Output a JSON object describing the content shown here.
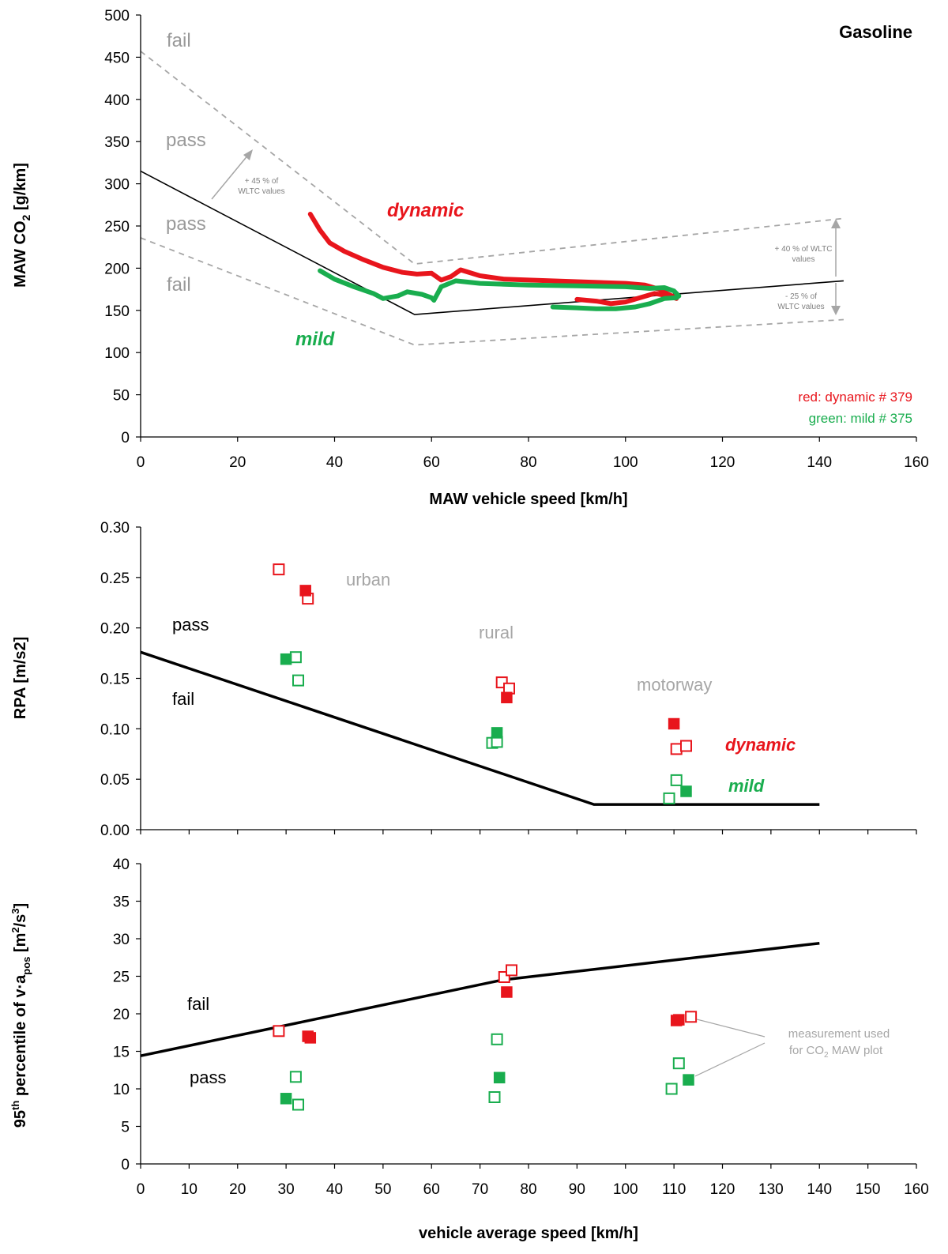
{
  "chart_data": [
    {
      "type": "scatter",
      "title": "Gasoline",
      "xlabel": "MAW vehicle speed [km/h]",
      "ylabel_main": "MAW CO",
      "ylabel_sub": "2",
      "ylabel_unit": " [g/km]",
      "xlim": [
        0,
        160
      ],
      "ylim": [
        0,
        500
      ],
      "xticks": [
        "0",
        "20",
        "40",
        "60",
        "80",
        "100",
        "120",
        "140",
        "160"
      ],
      "yticks": [
        "0",
        "50",
        "100",
        "150",
        "200",
        "250",
        "300",
        "350",
        "400",
        "450",
        "500"
      ],
      "grid": false,
      "legend_notes": [
        "red: dynamic # 379",
        "green: mild # 375"
      ],
      "region_labels": [
        "fail",
        "pass",
        "pass",
        "fail"
      ],
      "series_labels": [
        "dynamic",
        "mild"
      ],
      "annotations": {
        "upper": [
          "+ 45 % of",
          "WLTC values"
        ],
        "right_upper": [
          "+ 40 % of WLTC",
          "values"
        ],
        "right_lower": [
          "- 25 % of",
          "WLTC values"
        ]
      },
      "reference_line": {
        "x": [
          0,
          56.5,
          145
        ],
        "y": [
          315,
          145,
          185
        ]
      },
      "upper_limit": {
        "x": [
          0,
          56.5,
          145
        ],
        "y": [
          457,
          205,
          259
        ]
      },
      "lower_limit": {
        "x": [
          0,
          56.5,
          145
        ],
        "y": [
          236,
          109,
          139
        ]
      },
      "series": [
        {
          "name": "dynamic",
          "color": "#e8151c",
          "x": [
            35,
            37,
            39,
            42,
            46,
            50,
            54,
            57,
            60,
            62,
            64,
            66,
            70,
            75,
            80,
            90,
            100,
            104,
            107,
            108.5,
            110,
            110.5,
            109,
            106,
            103,
            100,
            97,
            94,
            90
          ],
          "y": [
            264,
            245,
            230,
            220,
            210,
            201,
            195,
            193,
            194,
            186,
            190,
            198,
            191,
            187,
            186,
            184,
            182,
            180,
            175,
            170,
            166,
            164,
            167,
            170,
            165,
            160,
            158,
            161,
            163
          ]
        },
        {
          "name": "mild",
          "color": "#19ad4e",
          "x": [
            37,
            40,
            44,
            48,
            50,
            53,
            55,
            58,
            60,
            60.5,
            62,
            65,
            70,
            75,
            80,
            90,
            100,
            105,
            108,
            110,
            111,
            110.5,
            108,
            105,
            102,
            98,
            94,
            90,
            85
          ],
          "y": [
            197,
            187,
            178,
            170,
            164,
            167,
            172,
            169,
            165,
            162,
            178,
            185,
            182,
            181,
            180,
            179,
            178,
            176,
            177,
            173,
            167,
            165,
            164,
            158,
            154,
            152,
            152,
            153,
            154
          ]
        }
      ]
    },
    {
      "type": "scatter",
      "xlabel": "",
      "ylabel": "RPA [m/s2]",
      "xlim": [
        0,
        160
      ],
      "ylim": [
        0,
        0.3
      ],
      "yticks": [
        "0.00",
        "0.05",
        "0.10",
        "0.15",
        "0.20",
        "0.25",
        "0.30"
      ],
      "grid": false,
      "region_labels": [
        "pass",
        "fail"
      ],
      "phase_labels": [
        "urban",
        "rural",
        "motorway"
      ],
      "series_labels": [
        "dynamic",
        "mild"
      ],
      "limit_line": {
        "x": [
          0,
          93.5,
          140
        ],
        "y": [
          0.176,
          0.025,
          0.025
        ]
      },
      "series": [
        {
          "name": "dynamic",
          "color": "#e8151c",
          "filled": false,
          "x": [
            28.5,
            34.5,
            74.5,
            76,
            110.5,
            112.5
          ],
          "y": [
            0.258,
            0.229,
            0.146,
            0.14,
            0.08,
            0.083
          ]
        },
        {
          "name": "dynamic",
          "color": "#e8151c",
          "filled": true,
          "x": [
            34,
            75.5,
            110
          ],
          "y": [
            0.237,
            0.131,
            0.105
          ]
        },
        {
          "name": "mild",
          "color": "#19ad4e",
          "filled": false,
          "x": [
            32,
            32.5,
            72.5,
            73.5,
            109,
            110.5
          ],
          "y": [
            0.171,
            0.148,
            0.086,
            0.087,
            0.031,
            0.049
          ]
        },
        {
          "name": "mild",
          "color": "#19ad4e",
          "filled": true,
          "x": [
            30,
            73.5,
            112.5
          ],
          "y": [
            0.169,
            0.096,
            0.038
          ]
        }
      ]
    },
    {
      "type": "scatter",
      "xlabel": "vehicle average speed [km/h]",
      "ylabel_parts": [
        "95",
        "th",
        " percentile of v·a",
        "pos",
        " [m",
        "2",
        "/s",
        "3",
        "]"
      ],
      "xlim": [
        0,
        160
      ],
      "ylim": [
        0,
        40
      ],
      "xticks": [
        "0",
        "10",
        "20",
        "30",
        "40",
        "50",
        "60",
        "70",
        "80",
        "90",
        "100",
        "110",
        "120",
        "130",
        "140",
        "150",
        "160"
      ],
      "yticks": [
        "0",
        "5",
        "10",
        "15",
        "20",
        "25",
        "30",
        "35",
        "40"
      ],
      "grid": false,
      "region_labels": [
        "fail",
        "pass"
      ],
      "annotation": {
        "line1": "measurement used",
        "line2_main": "for CO",
        "line2_sub": "2",
        "line2_rest": " MAW plot"
      },
      "limit_line": {
        "x": [
          0,
          74.5,
          140
        ],
        "y": [
          14.4,
          24.5,
          29.4
        ]
      },
      "series": [
        {
          "name": "dynamic",
          "color": "#e8151c",
          "filled": false,
          "x": [
            28.5,
            75,
            76.5,
            113.5
          ],
          "y": [
            17.7,
            24.9,
            25.8,
            19.6
          ]
        },
        {
          "name": "dynamic",
          "color": "#e8151c",
          "filled": true,
          "x": [
            34.5,
            35,
            75.5,
            110.5,
            111
          ],
          "y": [
            17.0,
            16.8,
            22.9,
            19.1,
            19.2
          ]
        },
        {
          "name": "mild",
          "color": "#19ad4e",
          "filled": false,
          "x": [
            32,
            32.5,
            73,
            73.5,
            109.5,
            111
          ],
          "y": [
            11.6,
            7.9,
            8.9,
            16.6,
            10.0,
            13.4
          ]
        },
        {
          "name": "mild",
          "color": "#19ad4e",
          "filled": true,
          "x": [
            30,
            74,
            113
          ],
          "y": [
            8.7,
            11.5,
            11.2
          ]
        }
      ]
    }
  ]
}
